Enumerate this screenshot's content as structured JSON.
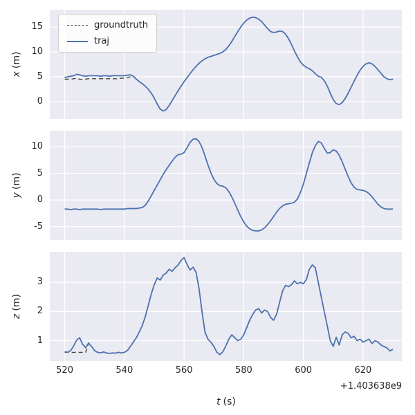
{
  "chart_data": {
    "type": "line",
    "x_offset_text": "+1.403638e9",
    "xlabel": {
      "var": "t",
      "unit": "(s)"
    },
    "x_ticks": [
      520,
      540,
      560,
      580,
      600,
      620
    ],
    "xlim": [
      515,
      633
    ],
    "legend": [
      "groundtruth",
      "traj"
    ],
    "legend_position": "upper-left",
    "grid": true,
    "colors": {
      "figure_bg": "#ffffff",
      "axes_bg": "#eaeaf2",
      "grid": "#ffffff",
      "text": "#262626"
    },
    "series_style": {
      "groundtruth": {
        "color": "#444444",
        "dash": true,
        "width": 1.4
      },
      "traj": {
        "color": "#4c72b0",
        "dash": false,
        "width": 1.8
      }
    },
    "t": [
      520,
      521,
      522,
      523,
      524,
      525,
      526,
      527,
      528,
      529,
      530,
      531,
      532,
      533,
      534,
      535,
      536,
      537,
      538,
      539,
      540,
      541,
      542,
      543,
      544,
      545,
      546,
      547,
      548,
      549,
      550,
      551,
      552,
      553,
      554,
      555,
      556,
      557,
      558,
      559,
      560,
      561,
      562,
      563,
      564,
      565,
      566,
      567,
      568,
      569,
      570,
      571,
      572,
      573,
      574,
      575,
      576,
      577,
      578,
      579,
      580,
      581,
      582,
      583,
      584,
      585,
      586,
      587,
      588,
      589,
      590,
      591,
      592,
      593,
      594,
      595,
      596,
      597,
      598,
      599,
      600,
      601,
      602,
      603,
      604,
      605,
      606,
      607,
      608,
      609,
      610,
      611,
      612,
      613,
      614,
      615,
      616,
      617,
      618,
      619,
      620,
      621,
      622,
      623,
      624,
      625,
      626,
      627,
      628,
      629,
      630
    ],
    "subplots": [
      {
        "id": "x",
        "ylabel": {
          "var": "x",
          "unit": "(m)"
        },
        "yticks": [
          0,
          5,
          10,
          15
        ],
        "ylim": [
          -3.5,
          18.5
        ],
        "series": [
          {
            "name": "groundtruth",
            "values": [
              4.5,
              4.5,
              4.5,
              4.6,
              4.7,
              4.5,
              4.4,
              4.5,
              4.6,
              4.6,
              4.6,
              4.6,
              4.6,
              4.6,
              4.6,
              4.6,
              4.6,
              4.6,
              4.6,
              4.7,
              4.7,
              4.8,
              5.0,
              5.0,
              4.5,
              4.0,
              3.6,
              3.1,
              2.5,
              1.7,
              0.7,
              -0.5,
              -1.5,
              -1.9,
              -1.6,
              -0.8,
              0.2,
              1.2,
              2.2,
              3.1,
              4.0,
              4.8,
              5.6,
              6.4,
              7.1,
              7.7,
              8.2,
              8.6,
              8.9,
              9.1,
              9.3,
              9.5,
              9.7,
              10.0,
              10.5,
              11.2,
              12.1,
              13.1,
              14.1,
              15.0,
              15.8,
              16.4,
              16.8,
              17.0,
              16.9,
              16.6,
              16.1,
              15.4,
              14.7,
              14.1,
              13.9,
              14.0,
              14.2,
              14.1,
              13.6,
              12.7,
              11.5,
              10.2,
              9.0,
              8.0,
              7.3,
              6.9,
              6.6,
              6.2,
              5.6,
              5.1,
              4.9,
              4.2,
              3.1,
              1.7,
              0.4,
              -0.4,
              -0.6,
              -0.2,
              0.6,
              1.7,
              2.9,
              4.1,
              5.3,
              6.3,
              7.1,
              7.6,
              7.8,
              7.6,
              7.1,
              6.4,
              5.7,
              5.0,
              4.6,
              4.4,
              4.5
            ]
          },
          {
            "name": "traj",
            "values": [
              4.8,
              5.0,
              5.1,
              5.2,
              5.5,
              5.4,
              5.2,
              5.1,
              5.2,
              5.2,
              5.2,
              5.2,
              5.1,
              5.2,
              5.2,
              5.1,
              5.2,
              5.2,
              5.2,
              5.2,
              5.2,
              5.3,
              5.4,
              5.1,
              4.5,
              4.0,
              3.6,
              3.1,
              2.5,
              1.7,
              0.7,
              -0.5,
              -1.5,
              -1.9,
              -1.6,
              -0.8,
              0.2,
              1.2,
              2.2,
              3.1,
              4.0,
              4.8,
              5.6,
              6.4,
              7.1,
              7.7,
              8.2,
              8.6,
              8.9,
              9.1,
              9.3,
              9.5,
              9.7,
              10.0,
              10.5,
              11.2,
              12.1,
              13.1,
              14.1,
              15.0,
              15.8,
              16.4,
              16.8,
              17.0,
              16.9,
              16.6,
              16.1,
              15.4,
              14.7,
              14.1,
              13.9,
              14.0,
              14.2,
              14.1,
              13.6,
              12.7,
              11.5,
              10.2,
              9.0,
              8.0,
              7.3,
              6.9,
              6.6,
              6.2,
              5.6,
              5.1,
              4.9,
              4.2,
              3.1,
              1.7,
              0.4,
              -0.4,
              -0.6,
              -0.2,
              0.6,
              1.7,
              2.9,
              4.1,
              5.3,
              6.3,
              7.1,
              7.6,
              7.8,
              7.6,
              7.1,
              6.4,
              5.7,
              5.0,
              4.6,
              4.4,
              4.5
            ]
          }
        ]
      },
      {
        "id": "y",
        "ylabel": {
          "var": "y",
          "unit": "(m)"
        },
        "yticks": [
          -5,
          0,
          5,
          10
        ],
        "ylim": [
          -7.5,
          13.0
        ],
        "series": [
          {
            "name": "groundtruth",
            "values": [
              -1.7,
              -1.7,
              -1.8,
              -1.7,
              -1.7,
              -1.8,
              -1.7,
              -1.7,
              -1.7,
              -1.7,
              -1.7,
              -1.7,
              -1.8,
              -1.7,
              -1.7,
              -1.7,
              -1.7,
              -1.7,
              -1.7,
              -1.7,
              -1.7,
              -1.6,
              -1.6,
              -1.6,
              -1.6,
              -1.5,
              -1.4,
              -1.0,
              -0.2,
              0.8,
              1.8,
              2.8,
              3.8,
              4.8,
              5.7,
              6.5,
              7.3,
              8.0,
              8.5,
              8.6,
              8.9,
              9.8,
              10.8,
              11.4,
              11.5,
              11.0,
              9.9,
              8.3,
              6.6,
              5.1,
              3.9,
              3.1,
              2.7,
              2.6,
              2.3,
              1.6,
              0.6,
              -0.6,
              -1.9,
              -3.1,
              -4.1,
              -4.9,
              -5.4,
              -5.7,
              -5.8,
              -5.8,
              -5.6,
              -5.2,
              -4.6,
              -3.9,
              -3.1,
              -2.3,
              -1.6,
              -1.1,
              -0.8,
              -0.7,
              -0.6,
              -0.4,
              0.2,
              1.4,
              3.0,
              5.0,
              7.0,
              8.9,
              10.2,
              11.0,
              10.7,
              9.7,
              8.8,
              8.9,
              9.4,
              9.2,
              8.4,
              7.2,
              5.8,
              4.4,
              3.2,
              2.4,
              2.0,
              1.9,
              1.8,
              1.6,
              1.2,
              0.6,
              -0.1,
              -0.8,
              -1.3,
              -1.6,
              -1.7,
              -1.7,
              -1.7
            ]
          },
          {
            "name": "traj",
            "values": [
              -1.7,
              -1.7,
              -1.8,
              -1.7,
              -1.7,
              -1.8,
              -1.7,
              -1.7,
              -1.7,
              -1.7,
              -1.7,
              -1.7,
              -1.8,
              -1.7,
              -1.7,
              -1.7,
              -1.7,
              -1.7,
              -1.7,
              -1.7,
              -1.7,
              -1.6,
              -1.6,
              -1.6,
              -1.6,
              -1.5,
              -1.4,
              -1.0,
              -0.2,
              0.8,
              1.8,
              2.8,
              3.8,
              4.8,
              5.7,
              6.5,
              7.3,
              8.0,
              8.5,
              8.6,
              8.9,
              9.8,
              10.8,
              11.4,
              11.5,
              11.0,
              9.9,
              8.3,
              6.6,
              5.1,
              3.9,
              3.1,
              2.7,
              2.6,
              2.3,
              1.6,
              0.6,
              -0.6,
              -1.9,
              -3.1,
              -4.1,
              -4.9,
              -5.4,
              -5.7,
              -5.8,
              -5.8,
              -5.6,
              -5.2,
              -4.6,
              -3.9,
              -3.1,
              -2.3,
              -1.6,
              -1.1,
              -0.8,
              -0.7,
              -0.6,
              -0.4,
              0.2,
              1.4,
              3.0,
              5.0,
              7.0,
              8.9,
              10.2,
              11.0,
              10.7,
              9.7,
              8.8,
              8.9,
              9.4,
              9.2,
              8.4,
              7.2,
              5.8,
              4.4,
              3.2,
              2.4,
              2.0,
              1.9,
              1.8,
              1.6,
              1.2,
              0.6,
              -0.1,
              -0.8,
              -1.3,
              -1.6,
              -1.7,
              -1.7,
              -1.7
            ]
          }
        ]
      },
      {
        "id": "z",
        "ylabel": {
          "var": "z",
          "unit": "(m)"
        },
        "yticks": [
          1,
          2,
          3
        ],
        "ylim": [
          0.3,
          4.05
        ],
        "series": [
          {
            "name": "groundtruth",
            "values": [
              0.6,
              0.6,
              0.6,
              0.6,
              0.6,
              0.6,
              0.6,
              0.6,
              0.92,
              0.8,
              0.66,
              0.6,
              0.58,
              0.61,
              0.58,
              0.56,
              0.58,
              0.57,
              0.6,
              0.58,
              0.6,
              0.66,
              0.8,
              0.95,
              1.1,
              1.3,
              1.52,
              1.82,
              2.2,
              2.6,
              2.92,
              3.15,
              3.08,
              3.25,
              3.32,
              3.45,
              3.38,
              3.5,
              3.6,
              3.75,
              3.85,
              3.62,
              3.42,
              3.52,
              3.35,
              2.8,
              2.0,
              1.3,
              1.05,
              0.95,
              0.8,
              0.6,
              0.52,
              0.62,
              0.82,
              1.05,
              1.2,
              1.1,
              1.0,
              1.05,
              1.2,
              1.45,
              1.7,
              1.9,
              2.05,
              2.1,
              1.95,
              2.05,
              2.0,
              1.8,
              1.7,
              1.9,
              2.3,
              2.7,
              2.9,
              2.85,
              2.92,
              3.05,
              2.95,
              3.0,
              2.95,
              3.1,
              3.45,
              3.6,
              3.5,
              3.0,
              2.5,
              2.0,
              1.5,
              1.0,
              0.8,
              1.12,
              0.85,
              1.2,
              1.3,
              1.25,
              1.1,
              1.15,
              1.0,
              1.05,
              0.95,
              1.0,
              1.05,
              0.9,
              1.0,
              0.95,
              0.85,
              0.8,
              0.75,
              0.65,
              0.7
            ]
          },
          {
            "name": "traj",
            "values": [
              0.62,
              0.6,
              0.66,
              0.82,
              1.02,
              1.1,
              0.88,
              0.76,
              0.92,
              0.8,
              0.66,
              0.6,
              0.58,
              0.61,
              0.58,
              0.56,
              0.58,
              0.57,
              0.6,
              0.58,
              0.6,
              0.66,
              0.8,
              0.95,
              1.1,
              1.3,
              1.52,
              1.82,
              2.2,
              2.6,
              2.92,
              3.15,
              3.08,
              3.25,
              3.32,
              3.45,
              3.38,
              3.5,
              3.6,
              3.75,
              3.85,
              3.62,
              3.42,
              3.52,
              3.35,
              2.8,
              2.0,
              1.3,
              1.05,
              0.95,
              0.8,
              0.6,
              0.52,
              0.62,
              0.82,
              1.05,
              1.2,
              1.1,
              1.0,
              1.05,
              1.2,
              1.45,
              1.7,
              1.9,
              2.05,
              2.1,
              1.95,
              2.05,
              2.0,
              1.8,
              1.7,
              1.9,
              2.3,
              2.7,
              2.9,
              2.85,
              2.92,
              3.05,
              2.95,
              3.0,
              2.95,
              3.1,
              3.45,
              3.6,
              3.5,
              3.0,
              2.5,
              2.0,
              1.5,
              1.0,
              0.8,
              1.12,
              0.85,
              1.2,
              1.3,
              1.25,
              1.1,
              1.15,
              1.0,
              1.05,
              0.95,
              1.0,
              1.05,
              0.9,
              1.0,
              0.95,
              0.85,
              0.8,
              0.75,
              0.65,
              0.7
            ]
          }
        ]
      }
    ]
  }
}
